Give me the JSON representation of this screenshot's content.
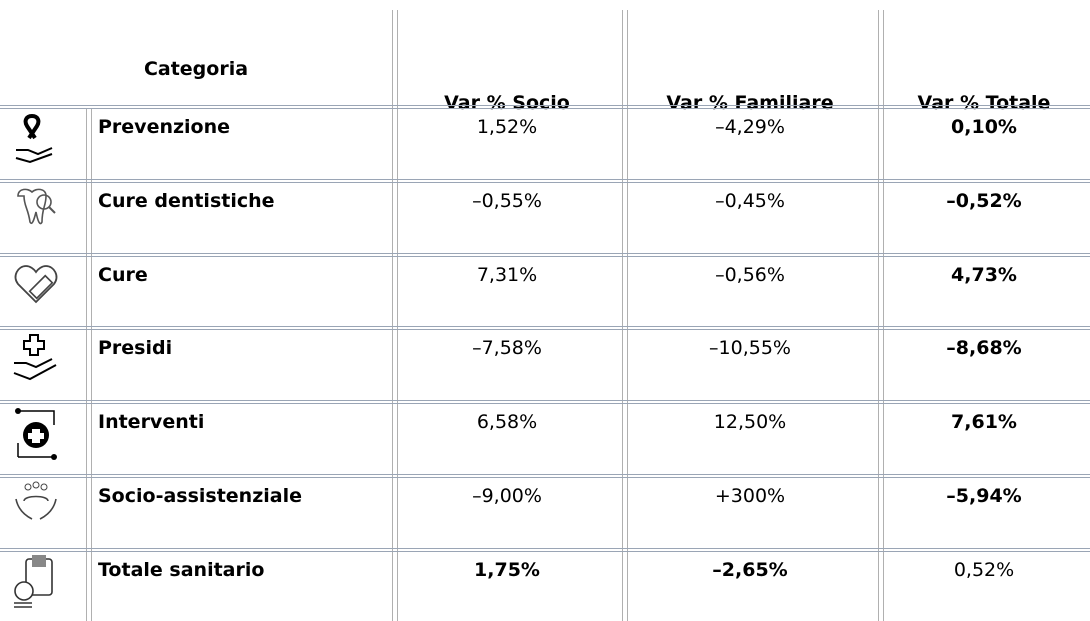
{
  "table": {
    "header": [
      "Categoria",
      "Var % Socio",
      "Var % Familiare",
      "Var % Totale"
    ],
    "rows": [
      [
        "Prevenzione",
        "1,52%",
        "–4,29%",
        "0,10%"
      ],
      [
        "Cure dentistiche",
        "–0,55%",
        "–0,45%",
        "–0,52%"
      ],
      [
        "Cure",
        "7,31%",
        "–0,56%",
        "4,73%"
      ],
      [
        "Presidi",
        "–7,58%",
        "–10,55%",
        "–8,68%"
      ],
      [
        "Interventi",
        "6,58%",
        "12,50%",
        "7,61%"
      ],
      [
        "Socio-assistenziale",
        "–9,00%",
        "+300%",
        "–5,94%"
      ],
      [
        "Totale sanitario",
        "1,75%",
        "–2,65%",
        "0,52%"
      ]
    ]
  }
}
